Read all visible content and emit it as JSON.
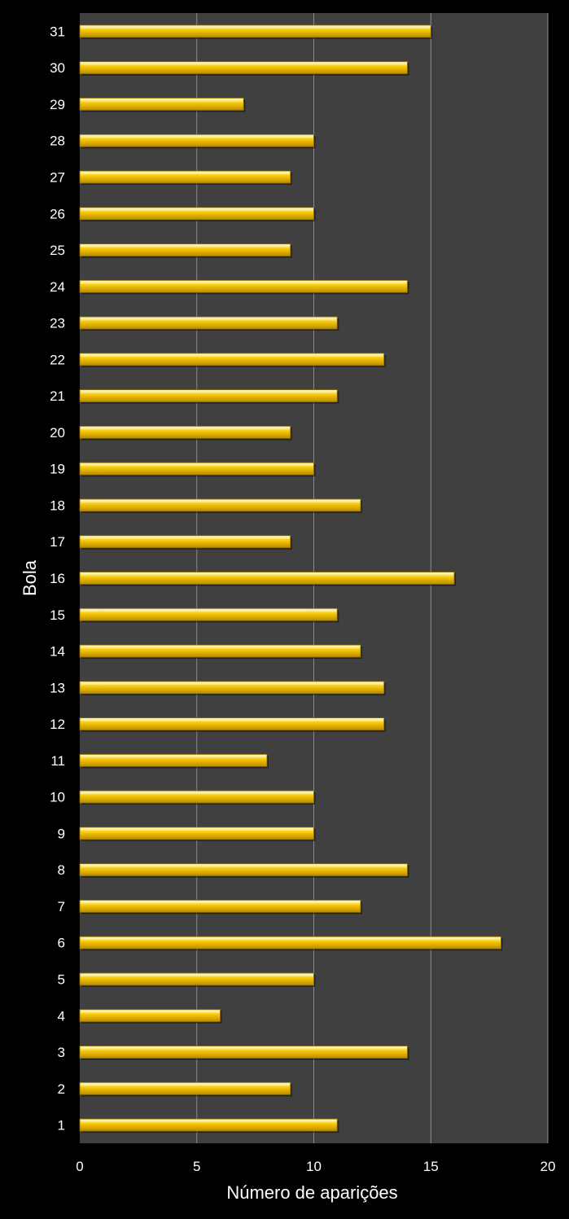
{
  "chart_data": {
    "type": "bar",
    "orientation": "horizontal",
    "title": "",
    "xlabel": "Número de aparições",
    "ylabel": "Bola",
    "xlim": [
      0,
      20
    ],
    "xticks": [
      0,
      5,
      10,
      15,
      20
    ],
    "grid": "vertical",
    "legend": "none",
    "categories": [
      "1",
      "2",
      "3",
      "4",
      "5",
      "6",
      "7",
      "8",
      "9",
      "10",
      "11",
      "12",
      "13",
      "14",
      "15",
      "16",
      "17",
      "18",
      "19",
      "20",
      "21",
      "22",
      "23",
      "24",
      "25",
      "26",
      "27",
      "28",
      "29",
      "30",
      "31"
    ],
    "values": [
      11,
      9,
      14,
      6,
      10,
      18,
      12,
      14,
      10,
      10,
      8,
      13,
      13,
      12,
      11,
      16,
      9,
      12,
      10,
      9,
      11,
      13,
      11,
      14,
      9,
      10,
      9,
      10,
      7,
      14,
      15
    ]
  },
  "colors": {
    "page_background": "#000000",
    "plot_background": "#404040",
    "gridline": "#8c8c8c",
    "bar_top": "#fff7a0",
    "bar_mid": "#f5c400",
    "bar_bottom": "#b88a00",
    "text": "#ffffff"
  }
}
